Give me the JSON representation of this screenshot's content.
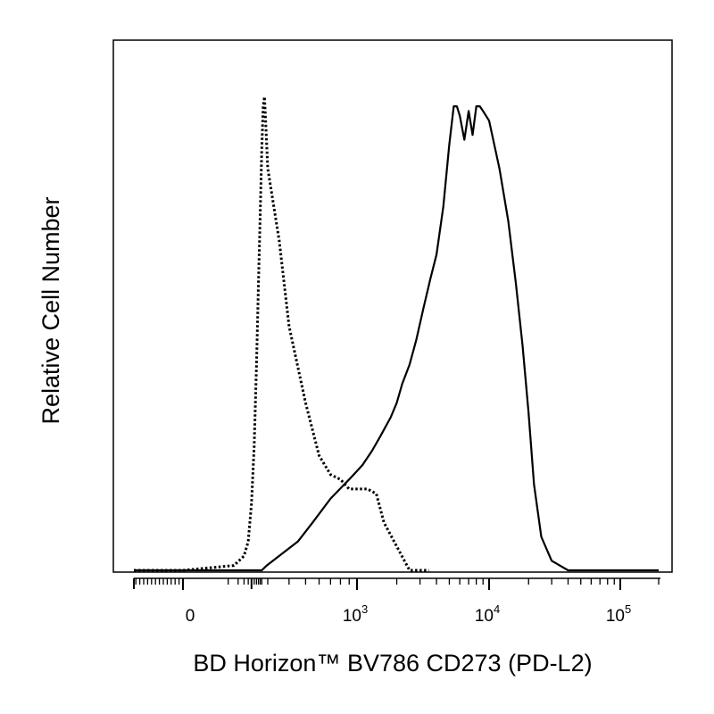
{
  "chart_data": {
    "type": "line",
    "title": "",
    "xlabel": "BD Horizon™ BV786 CD273 (PD-L2)",
    "ylabel": "Relative Cell Number",
    "x_scale": "biexponential",
    "xlim": [
      -250,
      200000
    ],
    "ylim": [
      0,
      100
    ],
    "grid": false,
    "legend": "none",
    "x_ticks": [
      {
        "value": 0,
        "base": "0",
        "exp": ""
      },
      {
        "value": 1000,
        "base": "10",
        "exp": "3"
      },
      {
        "value": 10000,
        "base": "10",
        "exp": "4"
      },
      {
        "value": 100000,
        "base": "10",
        "exp": "5"
      }
    ],
    "series": [
      {
        "style": "dotted",
        "x": [
          -250,
          -100,
          0,
          30,
          60,
          80,
          100,
          120,
          140,
          160,
          180,
          200,
          220,
          240,
          260,
          300,
          350,
          400,
          500,
          600,
          700,
          800,
          900,
          1000,
          1200,
          1400,
          1600,
          2000,
          2500,
          3500
        ],
        "y": [
          0,
          0,
          0,
          1,
          3,
          6,
          14,
          26,
          43,
          60,
          74,
          88,
          97,
          99,
          94,
          84,
          69,
          51,
          35,
          24,
          20,
          19,
          17,
          17,
          17,
          16,
          10,
          5,
          0,
          0
        ]
      },
      {
        "style": "solid",
        "x": [
          -250,
          100,
          200,
          280,
          350,
          450,
          550,
          700,
          900,
          1100,
          1300,
          1500,
          1800,
          2000,
          2200,
          2500,
          2800,
          3200,
          3600,
          4000,
          4500,
          5000,
          5400,
          5700,
          6000,
          6500,
          7000,
          7500,
          8000,
          8500,
          9000,
          10000,
          12000,
          14000,
          16000,
          18000,
          20000,
          22000,
          25000,
          30000,
          40000,
          60000,
          200000
        ],
        "y": [
          0,
          0,
          0,
          1,
          3,
          6,
          10,
          15,
          19,
          22,
          25,
          28,
          32,
          35,
          39,
          43,
          48,
          55,
          61,
          66,
          76,
          89,
          97,
          97,
          95,
          90,
          96,
          91,
          97,
          97,
          96,
          94,
          84,
          73,
          60,
          47,
          33,
          18,
          7,
          2,
          0,
          0,
          0
        ]
      }
    ]
  }
}
